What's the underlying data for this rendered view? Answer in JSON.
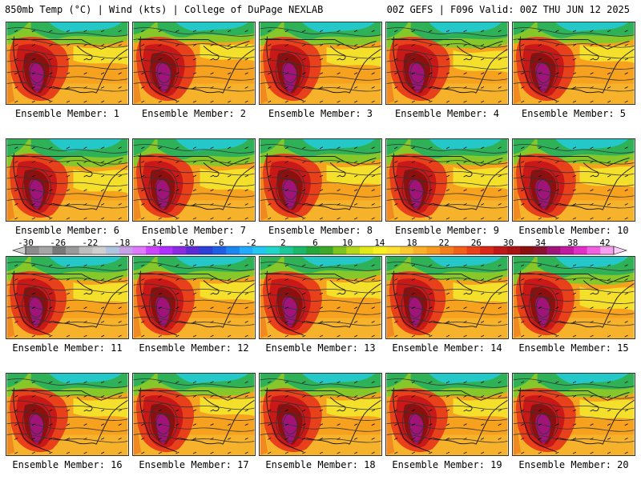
{
  "header": {
    "left": "850mb Temp (°C) | Wind (kts) | College of DuPage NEXLAB",
    "right": "00Z GEFS | F096 Valid: 00Z THU JUN 12 2025"
  },
  "members": [
    {
      "label": "Ensemble Member: 1",
      "warm": 0.9,
      "cool": 0.4
    },
    {
      "label": "Ensemble Member: 2",
      "warm": 0.95,
      "cool": 0.3
    },
    {
      "label": "Ensemble Member: 3",
      "warm": 0.85,
      "cool": 0.45
    },
    {
      "label": "Ensemble Member: 4",
      "warm": 1.0,
      "cool": 0.6
    },
    {
      "label": "Ensemble Member: 5",
      "warm": 0.9,
      "cool": 0.35
    },
    {
      "label": "Ensemble Member: 6",
      "warm": 0.85,
      "cool": 0.7
    },
    {
      "label": "Ensemble Member: 7",
      "warm": 0.8,
      "cool": 0.65
    },
    {
      "label": "Ensemble Member: 8",
      "warm": 0.9,
      "cool": 0.5
    },
    {
      "label": "Ensemble Member: 9",
      "warm": 0.8,
      "cool": 0.6
    },
    {
      "label": "Ensemble Member: 10",
      "warm": 0.95,
      "cool": 0.55
    },
    {
      "label": "Ensemble Member: 11",
      "warm": 0.75,
      "cool": 0.5
    },
    {
      "label": "Ensemble Member: 12",
      "warm": 0.85,
      "cool": 0.45
    },
    {
      "label": "Ensemble Member: 13",
      "warm": 0.9,
      "cool": 0.4
    },
    {
      "label": "Ensemble Member: 14",
      "warm": 0.7,
      "cool": 0.5
    },
    {
      "label": "Ensemble Member: 15",
      "warm": 0.85,
      "cool": 0.7
    },
    {
      "label": "Ensemble Member: 16",
      "warm": 0.85,
      "cool": 0.45
    },
    {
      "label": "Ensemble Member: 17",
      "warm": 0.8,
      "cool": 0.4
    },
    {
      "label": "Ensemble Member: 18",
      "warm": 0.9,
      "cool": 0.45
    },
    {
      "label": "Ensemble Member: 19",
      "warm": 0.85,
      "cool": 0.45
    },
    {
      "label": "Ensemble Member: 20",
      "warm": 0.95,
      "cool": 0.5
    }
  ],
  "colorbar": {
    "labels": [
      "-30",
      "-26",
      "-22",
      "-18",
      "-14",
      "-10",
      "-6",
      "-2",
      "2",
      "6",
      "10",
      "14",
      "18",
      "22",
      "26",
      "30",
      "34",
      "38",
      "42"
    ],
    "colors": [
      "#8c8c8c",
      "#a6a6a6",
      "#787878",
      "#9a9a9a",
      "#bebebe",
      "#cfcfcf",
      "#b0c4de",
      "#c8a0e6",
      "#e07aff",
      "#cc44ff",
      "#b030ff",
      "#8a2be2",
      "#5a2bd6",
      "#2c3fd9",
      "#1f5fe6",
      "#1a86f0",
      "#22aaff",
      "#22c8f0",
      "#20d6c8",
      "#1cc89a",
      "#19b86a",
      "#25a83a",
      "#3ea82a",
      "#7cc41e",
      "#b4d81a",
      "#e0e81a",
      "#f8f020",
      "#fde030",
      "#fcc830",
      "#fab028",
      "#f89a20",
      "#f57e1c",
      "#f2601a",
      "#e8401a",
      "#d82818",
      "#c01818",
      "#a81414",
      "#8c1010",
      "#8a1030",
      "#a0147a",
      "#c01aa0",
      "#e030c8",
      "#f060e0",
      "#f8a0f0"
    ]
  }
}
